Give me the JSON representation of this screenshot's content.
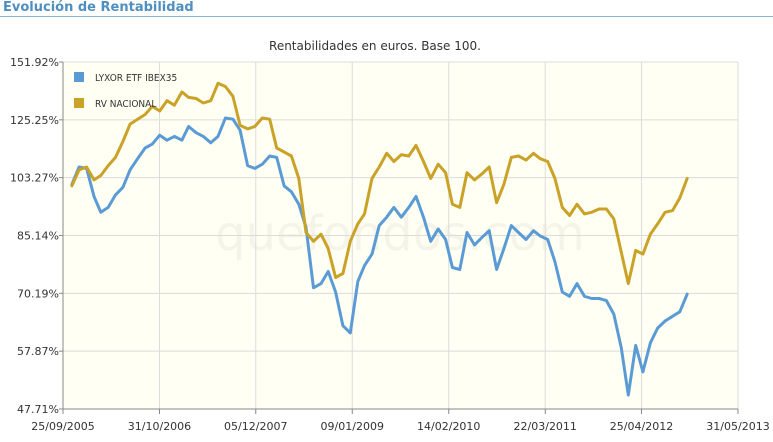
{
  "header": {
    "title": "Evolución de Rentabilidad"
  },
  "watermark": "quefondos.com",
  "colors": {
    "accent": "#4f8fbf",
    "plot_bg": "#fffff3",
    "grid": "#dcdcdc"
  },
  "chart_data": {
    "type": "line",
    "title": "Rentabilidades en euros. Base 100.",
    "y_scale": "log",
    "ylim": [
      47.71,
      151.92
    ],
    "ytick_labels": [
      "151.92%",
      "125.25%",
      "103.27%",
      "85.14%",
      "70.19%",
      "57.87%",
      "47.71%"
    ],
    "yticks": [
      151.92,
      125.25,
      103.27,
      85.14,
      70.19,
      57.87,
      47.71
    ],
    "xtick_labels": [
      "25/09/2005",
      "31/10/2006",
      "05/12/2007",
      "09/01/2009",
      "14/02/2010",
      "22/03/2011",
      "25/04/2012",
      "31/05/2013"
    ],
    "xticks": [
      "2005-09-25",
      "2006-10-31",
      "2007-12-05",
      "2009-01-09",
      "2010-02-14",
      "2011-03-22",
      "2012-04-25",
      "2013-05-31"
    ],
    "grid": true,
    "legend": "top-left",
    "series": [
      {
        "name": "LYXOR ETF IBEX35",
        "color": "#5b9bd5",
        "points": [
          [
            "2005-11-01",
            101
          ],
          [
            "2005-12-01",
            107
          ],
          [
            "2006-01-01",
            106.5
          ],
          [
            "2006-02-01",
            97
          ],
          [
            "2006-03-01",
            92
          ],
          [
            "2006-04-01",
            93.5
          ],
          [
            "2006-05-01",
            97.5
          ],
          [
            "2006-06-01",
            100
          ],
          [
            "2006-07-01",
            106
          ],
          [
            "2006-08-01",
            110
          ],
          [
            "2006-09-01",
            114
          ],
          [
            "2006-10-01",
            115.5
          ],
          [
            "2006-11-01",
            119
          ],
          [
            "2006-12-01",
            117
          ],
          [
            "2007-01-01",
            118.5
          ],
          [
            "2007-02-01",
            117
          ],
          [
            "2007-03-01",
            122.5
          ],
          [
            "2007-04-01",
            120
          ],
          [
            "2007-05-01",
            118.5
          ],
          [
            "2007-06-01",
            116
          ],
          [
            "2007-07-01",
            118.5
          ],
          [
            "2007-08-01",
            126
          ],
          [
            "2007-09-01",
            125.5
          ],
          [
            "2007-10-01",
            121
          ],
          [
            "2007-11-01",
            107.5
          ],
          [
            "2007-12-01",
            106.5
          ],
          [
            "2008-01-01",
            108
          ],
          [
            "2008-02-01",
            111
          ],
          [
            "2008-03-01",
            110.5
          ],
          [
            "2008-04-01",
            100.5
          ],
          [
            "2008-05-01",
            98.5
          ],
          [
            "2008-06-01",
            94.5
          ],
          [
            "2008-07-01",
            87.5
          ],
          [
            "2008-08-01",
            71.5
          ],
          [
            "2008-09-01",
            72.5
          ],
          [
            "2008-10-01",
            75.5
          ],
          [
            "2008-11-01",
            70.5
          ],
          [
            "2008-12-01",
            63
          ],
          [
            "2009-01-01",
            61.5
          ],
          [
            "2009-02-01",
            73
          ],
          [
            "2009-03-01",
            77
          ],
          [
            "2009-04-01",
            80
          ],
          [
            "2009-05-01",
            88
          ],
          [
            "2009-06-01",
            90.5
          ],
          [
            "2009-07-01",
            93.5
          ],
          [
            "2009-08-01",
            90.5
          ],
          [
            "2009-09-01",
            93.5
          ],
          [
            "2009-10-01",
            97
          ],
          [
            "2009-11-01",
            90.5
          ],
          [
            "2009-12-01",
            83.5
          ],
          [
            "2010-01-01",
            87
          ],
          [
            "2010-02-01",
            84
          ],
          [
            "2010-03-01",
            76.5
          ],
          [
            "2010-04-01",
            76
          ],
          [
            "2010-05-01",
            86
          ],
          [
            "2010-06-01",
            82.5
          ],
          [
            "2010-07-01",
            84.5
          ],
          [
            "2010-08-01",
            86.5
          ],
          [
            "2010-09-01",
            76
          ],
          [
            "2010-10-01",
            81.5
          ],
          [
            "2010-11-01",
            88
          ],
          [
            "2010-12-01",
            86
          ],
          [
            "2011-01-01",
            84
          ],
          [
            "2011-02-01",
            86.5
          ],
          [
            "2011-03-01",
            85
          ],
          [
            "2011-04-01",
            84
          ],
          [
            "2011-05-01",
            78
          ],
          [
            "2011-06-01",
            70.5
          ],
          [
            "2011-07-01",
            69.5
          ],
          [
            "2011-08-01",
            72.5
          ],
          [
            "2011-09-01",
            69.5
          ],
          [
            "2011-10-01",
            69
          ],
          [
            "2011-11-01",
            69
          ],
          [
            "2011-12-01",
            68.5
          ],
          [
            "2012-01-01",
            65.5
          ],
          [
            "2012-02-01",
            58.5
          ],
          [
            "2012-03-01",
            50
          ],
          [
            "2012-04-01",
            59
          ],
          [
            "2012-05-01",
            54
          ],
          [
            "2012-06-01",
            59.5
          ],
          [
            "2012-07-01",
            62.5
          ],
          [
            "2012-08-01",
            64
          ],
          [
            "2012-09-01",
            65
          ],
          [
            "2012-10-01",
            66
          ],
          [
            "2012-11-01",
            70
          ]
        ]
      },
      {
        "name": "RV NACIONAL",
        "color": "#c9a227",
        "points": [
          [
            "2005-11-01",
            100.5
          ],
          [
            "2005-12-01",
            106
          ],
          [
            "2006-01-01",
            107
          ],
          [
            "2006-02-01",
            102.5
          ],
          [
            "2006-03-01",
            104
          ],
          [
            "2006-04-01",
            107.5
          ],
          [
            "2006-05-01",
            110.5
          ],
          [
            "2006-06-01",
            116.5
          ],
          [
            "2006-07-01",
            123.5
          ],
          [
            "2006-08-01",
            125.5
          ],
          [
            "2006-09-01",
            127.5
          ],
          [
            "2006-10-01",
            131
          ],
          [
            "2006-11-01",
            129
          ],
          [
            "2006-12-01",
            133.5
          ],
          [
            "2007-01-01",
            131.5
          ],
          [
            "2007-02-01",
            137.5
          ],
          [
            "2007-03-01",
            135
          ],
          [
            "2007-04-01",
            134.5
          ],
          [
            "2007-05-01",
            132.5
          ],
          [
            "2007-06-01",
            133.5
          ],
          [
            "2007-07-01",
            141.5
          ],
          [
            "2007-08-01",
            140
          ],
          [
            "2007-09-01",
            135.5
          ],
          [
            "2007-10-01",
            123
          ],
          [
            "2007-11-01",
            121.5
          ],
          [
            "2007-12-01",
            122.5
          ],
          [
            "2008-01-01",
            126
          ],
          [
            "2008-02-01",
            125.5
          ],
          [
            "2008-03-01",
            114
          ],
          [
            "2008-04-01",
            112.5
          ],
          [
            "2008-05-01",
            111
          ],
          [
            "2008-06-01",
            103
          ],
          [
            "2008-07-01",
            86
          ],
          [
            "2008-08-01",
            83.5
          ],
          [
            "2008-09-01",
            85.5
          ],
          [
            "2008-10-01",
            81.5
          ],
          [
            "2008-11-01",
            74
          ],
          [
            "2008-12-01",
            75
          ],
          [
            "2009-01-01",
            83.5
          ],
          [
            "2009-02-01",
            88.5
          ],
          [
            "2009-03-01",
            91.5
          ],
          [
            "2009-04-01",
            103
          ],
          [
            "2009-05-01",
            107
          ],
          [
            "2009-06-01",
            112
          ],
          [
            "2009-07-01",
            109
          ],
          [
            "2009-08-01",
            111.5
          ],
          [
            "2009-09-01",
            111
          ],
          [
            "2009-10-01",
            115
          ],
          [
            "2009-11-01",
            109
          ],
          [
            "2009-12-01",
            103
          ],
          [
            "2010-01-01",
            108
          ],
          [
            "2010-02-01",
            105
          ],
          [
            "2010-03-01",
            94.5
          ],
          [
            "2010-04-01",
            93.5
          ],
          [
            "2010-05-01",
            105
          ],
          [
            "2010-06-01",
            102.5
          ],
          [
            "2010-07-01",
            104.5
          ],
          [
            "2010-08-01",
            107
          ],
          [
            "2010-09-01",
            95
          ],
          [
            "2010-10-01",
            101
          ],
          [
            "2010-11-01",
            110.5
          ],
          [
            "2010-12-01",
            111
          ],
          [
            "2011-01-01",
            109.5
          ],
          [
            "2011-02-01",
            112
          ],
          [
            "2011-03-01",
            110
          ],
          [
            "2011-04-01",
            109
          ],
          [
            "2011-05-01",
            103
          ],
          [
            "2011-06-01",
            93.5
          ],
          [
            "2011-07-01",
            91
          ],
          [
            "2011-08-01",
            94.5
          ],
          [
            "2011-09-01",
            91.5
          ],
          [
            "2011-10-01",
            92
          ],
          [
            "2011-11-01",
            93
          ],
          [
            "2011-12-01",
            93
          ],
          [
            "2012-01-01",
            90
          ],
          [
            "2012-02-01",
            80.5
          ],
          [
            "2012-03-01",
            72.5
          ],
          [
            "2012-04-01",
            81
          ],
          [
            "2012-05-01",
            80
          ],
          [
            "2012-06-01",
            85.5
          ],
          [
            "2012-07-01",
            88.5
          ],
          [
            "2012-08-01",
            92
          ],
          [
            "2012-09-01",
            92.5
          ],
          [
            "2012-10-01",
            96.5
          ],
          [
            "2012-11-01",
            103
          ]
        ]
      }
    ]
  }
}
